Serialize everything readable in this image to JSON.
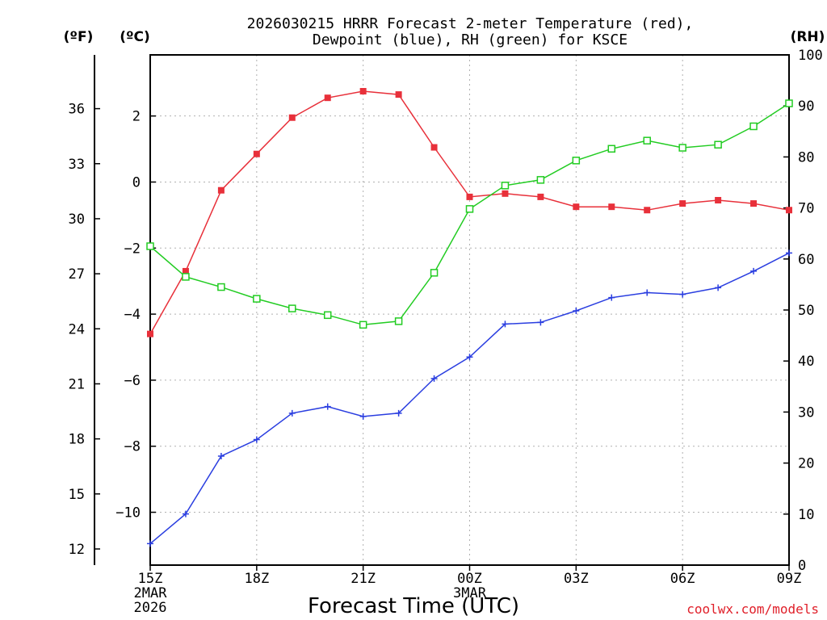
{
  "chart_data": {
    "type": "line",
    "title_line1": "2026030215 HRRR Forecast 2-meter Temperature (red),",
    "title_line2": "Dewpoint (blue), RH (green) for KSCE",
    "xlabel": "Forecast Time (UTC)",
    "credit": "coolwx.com/models",
    "units": {
      "f": "(ºF)",
      "c": "(ºC)",
      "rh": "(RH)"
    },
    "x_hours": [
      0,
      1,
      2,
      3,
      4,
      5,
      6,
      7,
      8,
      9,
      10,
      11,
      12,
      13,
      14,
      15,
      16,
      17,
      18
    ],
    "x_ticks": [
      {
        "hour": 0,
        "label": "15Z",
        "sub1": "2MAR",
        "sub2": "2026"
      },
      {
        "hour": 3,
        "label": "18Z",
        "sub1": "",
        "sub2": ""
      },
      {
        "hour": 6,
        "label": "21Z",
        "sub1": "",
        "sub2": ""
      },
      {
        "hour": 9,
        "label": "00Z",
        "sub1": "3MAR",
        "sub2": ""
      },
      {
        "hour": 12,
        "label": "03Z",
        "sub1": "",
        "sub2": ""
      },
      {
        "hour": 15,
        "label": "06Z",
        "sub1": "",
        "sub2": ""
      },
      {
        "hour": 18,
        "label": "09Z",
        "sub1": "",
        "sub2": ""
      }
    ],
    "c_axis": {
      "range": [
        -11.6,
        3.85
      ],
      "ticks": [
        -10,
        -8,
        -6,
        -4,
        -2,
        0,
        2
      ]
    },
    "f_axis": {
      "range": [
        11.12,
        38.93
      ],
      "ticks": [
        12,
        15,
        18,
        21,
        24,
        27,
        30,
        33,
        36
      ]
    },
    "rh_axis": {
      "range": [
        0,
        100
      ],
      "ticks": [
        0,
        10,
        20,
        30,
        40,
        50,
        60,
        70,
        80,
        90,
        100
      ]
    },
    "series": [
      {
        "name": "Temperature",
        "axis": "c",
        "color": "#e8303a",
        "marker": "filled-square",
        "values": [
          -4.6,
          -2.7,
          -0.25,
          0.85,
          1.95,
          2.55,
          2.75,
          2.65,
          1.05,
          -0.45,
          -0.35,
          -0.45,
          -0.75,
          -0.75,
          -0.85,
          -0.65,
          -0.55,
          -0.65,
          -0.85
        ]
      },
      {
        "name": "Dewpoint",
        "axis": "c",
        "color": "#2a3ee0",
        "marker": "plus",
        "values": [
          -10.95,
          -10.05,
          -8.3,
          -7.8,
          -7.0,
          -6.8,
          -7.1,
          -7.0,
          -5.95,
          -5.3,
          -4.3,
          -4.25,
          -3.9,
          -3.5,
          -3.35,
          -3.4,
          -3.2,
          -2.7,
          -2.15
        ]
      },
      {
        "name": "RH",
        "axis": "rh",
        "color": "#22cc22",
        "marker": "open-square",
        "values": [
          62.5,
          56.5,
          54.5,
          52.2,
          50.3,
          49.0,
          47.1,
          47.8,
          57.3,
          69.8,
          74.4,
          75.5,
          79.3,
          81.6,
          83.2,
          81.8,
          82.4,
          86.0,
          90.5
        ]
      }
    ]
  }
}
